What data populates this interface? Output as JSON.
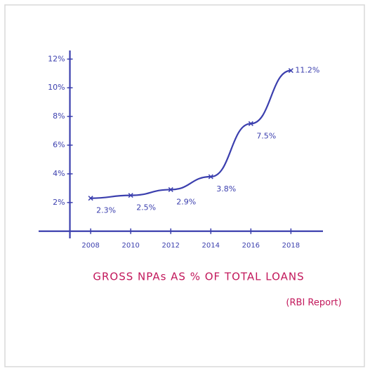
{
  "chart_data": {
    "type": "line",
    "title": "GROSS NPAs AS % OF TOTAL LOANS",
    "subtitle": "(RBI Report)",
    "x": [
      2008,
      2010,
      2012,
      2014,
      2016,
      2018
    ],
    "values": [
      2.3,
      2.5,
      2.9,
      3.8,
      7.5,
      11.2
    ],
    "value_labels": [
      "2.3%",
      "2.5%",
      "2.9%",
      "3.8%",
      "7.5%",
      "11.2%"
    ],
    "color": "#3b3fae",
    "title_color": "#c2185b",
    "xlim": [
      2005.4,
      2019.6
    ],
    "xticks": [
      2008,
      2010,
      2012,
      2014,
      2016,
      2018
    ],
    "ylim": [
      -0.5,
      12.6
    ],
    "yticks": [
      {
        "value": 2,
        "label": "2%"
      },
      {
        "value": 4,
        "label": "4%"
      },
      {
        "value": 6,
        "label": "6%"
      },
      {
        "value": 8,
        "label": "8%"
      },
      {
        "value": 10,
        "label": "10%"
      },
      {
        "value": 12,
        "label": "12%"
      }
    ],
    "grid": false
  }
}
